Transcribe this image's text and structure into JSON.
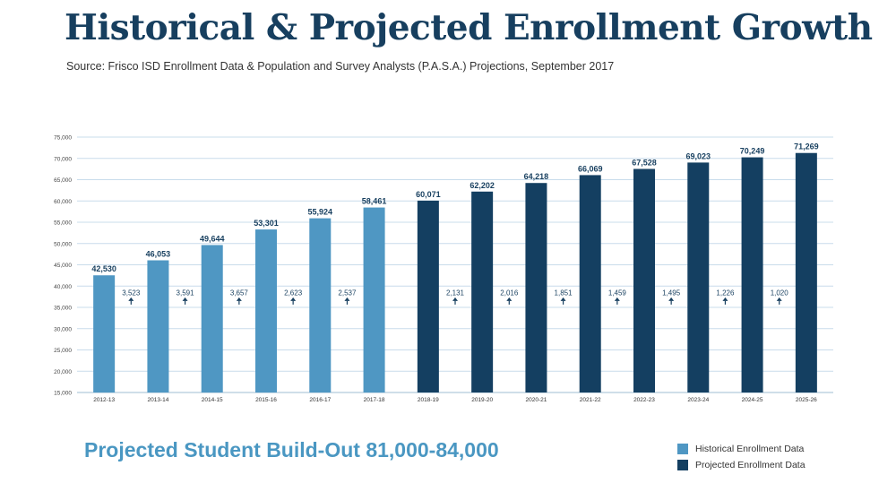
{
  "title": "Historical & Projected Enrollment Growth",
  "source": "Source: Frisco ISD Enrollment Data & Population and Survey Analysts (P.A.S.A.) Projections, September 2017",
  "buildout": "Projected Student Build-Out 81,000-84,000",
  "legend": {
    "historical": "Historical Enrollment Data",
    "projected": "Projected Enrollment Data"
  },
  "colors": {
    "historical": "#4f97c3",
    "projected": "#143f61",
    "title": "#173f5f",
    "grid": "#c9dceb"
  },
  "chart_data": {
    "type": "bar",
    "title": "Historical & Projected Enrollment Growth",
    "xlabel": "",
    "ylabel": "",
    "ylim": [
      15000,
      75000
    ],
    "yticks": [
      15000,
      20000,
      25000,
      30000,
      35000,
      40000,
      45000,
      50000,
      55000,
      60000,
      65000,
      70000,
      75000
    ],
    "ytick_labels": [
      "15,000",
      "20,000",
      "25,000",
      "30,000",
      "35,000",
      "40,000",
      "45,000",
      "50,000",
      "55,000",
      "60,000",
      "65,000",
      "70,000",
      "75,000"
    ],
    "grid": true,
    "categories": [
      "2012-13",
      "2013-14",
      "2014-15",
      "2015-16",
      "2016-17",
      "2017-18",
      "2018-19",
      "2019-20",
      "2020-21",
      "2021-22",
      "2022-23",
      "2023-24",
      "2024-25",
      "2025-26"
    ],
    "values": [
      42530,
      46053,
      49644,
      53301,
      55924,
      58461,
      60071,
      62202,
      64218,
      66069,
      67528,
      69023,
      70249,
      71269
    ],
    "value_labels": [
      "42,530",
      "46,053",
      "49,644",
      "53,301",
      "55,924",
      "58,461",
      "60,071",
      "62,202",
      "64,218",
      "66,069",
      "67,528",
      "69,023",
      "70,249",
      "71,269"
    ],
    "series_type": [
      "historical",
      "historical",
      "historical",
      "historical",
      "historical",
      "historical",
      "projected",
      "projected",
      "projected",
      "projected",
      "projected",
      "projected",
      "projected",
      "projected"
    ],
    "growth": [
      {
        "label": "3,523",
        "after": 0
      },
      {
        "label": "3,591",
        "after": 1
      },
      {
        "label": "3,657",
        "after": 2
      },
      {
        "label": "2,623",
        "after": 3
      },
      {
        "label": "2,537",
        "after": 4
      },
      {
        "label": "2,131",
        "after": 6
      },
      {
        "label": "2,016",
        "after": 7
      },
      {
        "label": "1,851",
        "after": 8
      },
      {
        "label": "1,459",
        "after": 9
      },
      {
        "label": "1,495",
        "after": 10
      },
      {
        "label": "1,226",
        "after": 11
      },
      {
        "label": "1,020",
        "after": 12
      }
    ]
  }
}
